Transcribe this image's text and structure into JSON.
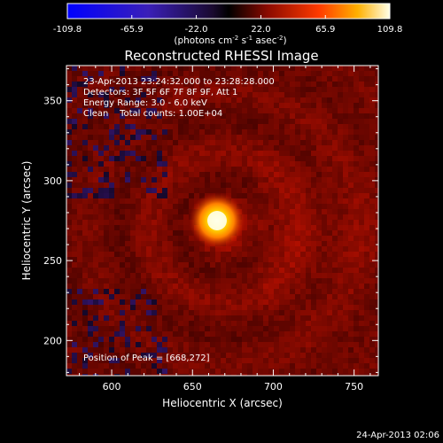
{
  "chart_data": {
    "type": "heatmap",
    "title": "Reconstructed RHESSI Image",
    "colorbar": {
      "ticks": [
        "-109.8",
        "-65.9",
        "-22.0",
        "22.0",
        "65.9",
        "109.8"
      ],
      "unit_prefix": "(photons cm",
      "unit_exp1": "-2",
      "unit_mid": " s",
      "unit_exp2": "-1",
      "unit_mid2": " asec",
      "unit_exp3": "-2",
      "unit_suffix": ")",
      "range": [
        -109.8,
        109.8
      ]
    },
    "info_lines": [
      "23-Apr-2013 23:24:32.000 to 23:28:28.000",
      "Detectors: 3F 5F 6F 7F 8F 9F, Att 1",
      "Energy Range: 3.0 - 6.0 keV",
      "Clean    Total counts: 1.00E+04"
    ],
    "peak_label": "Position of Peak = [668,272]",
    "peak": [
      668,
      272
    ],
    "xlabel": "Heliocentric X (arcsec)",
    "ylabel": "Heliocentric Y (arcsec)",
    "xlim": [
      572,
      765
    ],
    "ylim": [
      178,
      372
    ],
    "xticks": [
      "600",
      "650",
      "700",
      "750"
    ],
    "yticks": [
      "200",
      "250",
      "300",
      "350"
    ],
    "footer_timestamp": "24-Apr-2013 02:06"
  }
}
